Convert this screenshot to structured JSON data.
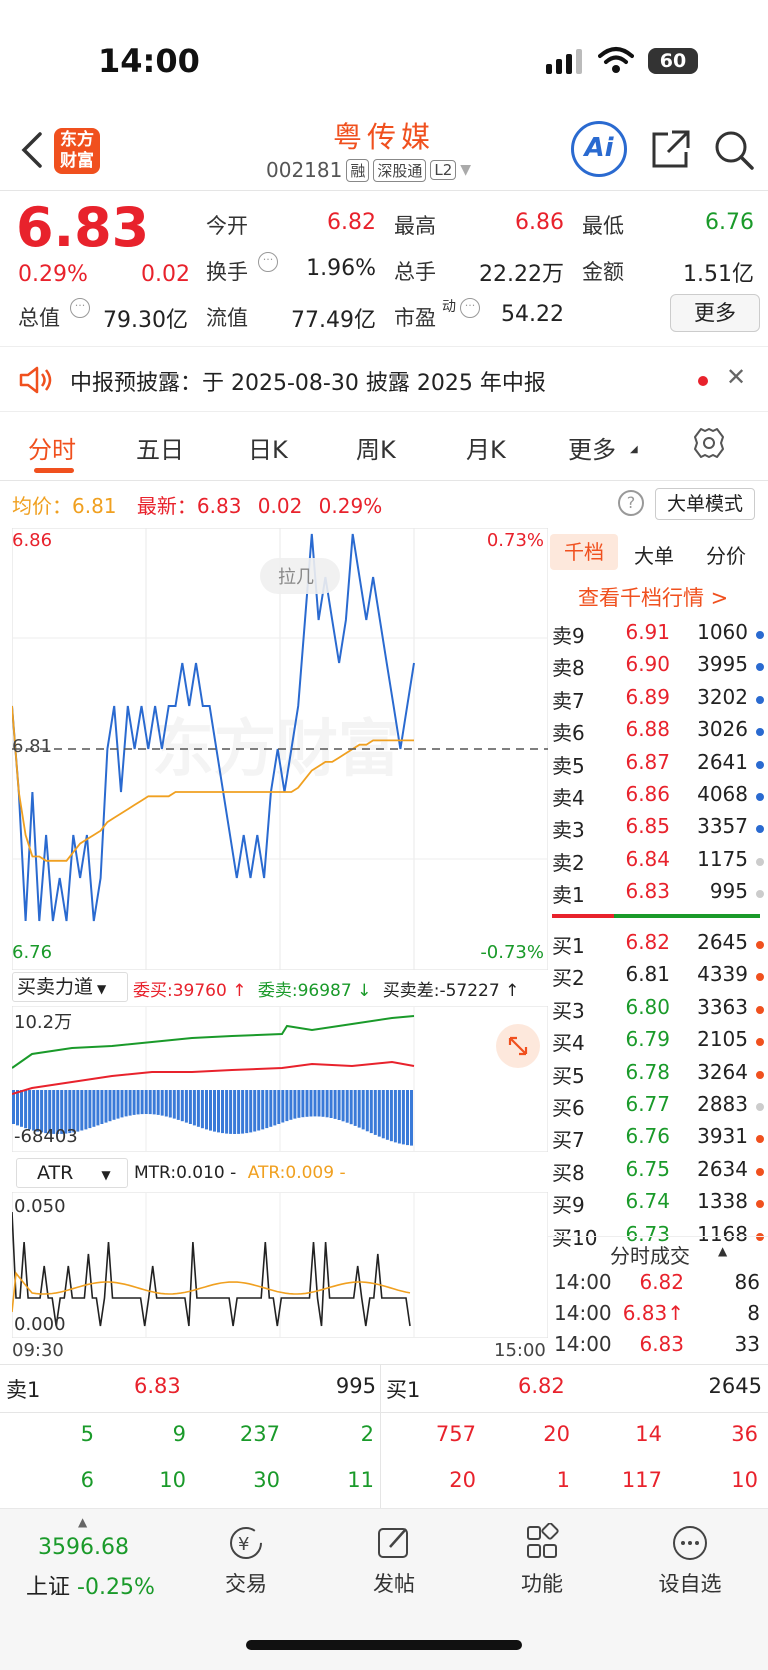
{
  "status_bar": {
    "time": "14:00",
    "battery": "60"
  },
  "header": {
    "logo": "东方财富",
    "name": "粤传媒",
    "code": "002181",
    "tags": [
      "融",
      "深股通",
      "L2"
    ],
    "ai_label": "Ai"
  },
  "quote": {
    "price": "6.83",
    "change_pct": "0.29%",
    "change": "0.02",
    "fields": {
      "open_label": "今开",
      "open": "6.82",
      "high_label": "最高",
      "high": "6.86",
      "low_label": "最低",
      "low": "6.76",
      "turnover_label": "换手",
      "turnover": "1.96%",
      "volume_label": "总手",
      "volume": "22.22万",
      "amount_label": "金额",
      "amount": "1.51亿",
      "mcap_label": "总值",
      "mcap": "79.30亿",
      "float_label": "流值",
      "float": "77.49亿",
      "pe_label": "市盈",
      "pe_sup": "动",
      "pe": "54.22"
    },
    "more": "更多"
  },
  "notice": {
    "text": "中报预披露：于 2025-08-30 披露 2025 年中报"
  },
  "tabs": [
    "分时",
    "五日",
    "日K",
    "周K",
    "月K",
    "更多"
  ],
  "chart_info": {
    "avg_label": "均价：",
    "avg": "6.81",
    "latest_label": "最新：",
    "latest": "6.83",
    "chg": "0.02",
    "chg_pct": "0.29%",
    "big_order_mode": "大单模式"
  },
  "chart_data": {
    "type": "line",
    "title": "",
    "y_top": "6.86",
    "y_bottom": "6.76",
    "y_mid": "6.81",
    "pct_top": "0.73%",
    "pct_bottom": "-0.73%",
    "x_start": "09:30",
    "x_end": "15:00",
    "ylim": [
      6.76,
      6.86
    ],
    "watermark": "东方财富",
    "series": [
      {
        "color": "#2a6ad0",
        "values": [
          6.82,
          6.8,
          6.77,
          6.8,
          6.77,
          6.79,
          6.77,
          6.78,
          6.77,
          6.79,
          6.78,
          6.79,
          6.77,
          6.78,
          6.81,
          6.82,
          6.8,
          6.82,
          6.81,
          6.82,
          6.81,
          6.82,
          6.81,
          6.82,
          6.82,
          6.83,
          6.82,
          6.83,
          6.82,
          6.82,
          6.81,
          6.8,
          6.79,
          6.78,
          6.79,
          6.78,
          6.79,
          6.78,
          6.8,
          6.81,
          6.8,
          6.81,
          6.82,
          6.84,
          6.86,
          6.84,
          6.85,
          6.84,
          6.83,
          6.84,
          6.86,
          6.85,
          6.84,
          6.85,
          6.84,
          6.83,
          6.82,
          6.81,
          6.82,
          6.83
        ]
      },
      {
        "color": "#f0a020",
        "values": [
          6.82,
          6.8,
          6.79,
          6.785,
          6.785,
          6.784,
          6.784,
          6.784,
          6.784,
          6.786,
          6.788,
          6.789,
          6.79,
          6.791,
          6.793,
          6.794,
          6.795,
          6.796,
          6.797,
          6.798,
          6.799,
          6.799,
          6.799,
          6.799,
          6.8,
          6.8,
          6.8,
          6.8,
          6.8,
          6.8,
          6.8,
          6.8,
          6.8,
          6.8,
          6.8,
          6.8,
          6.8,
          6.8,
          6.8,
          6.8,
          6.8,
          6.8,
          6.801,
          6.803,
          6.805,
          6.806,
          6.807,
          6.807,
          6.808,
          6.809,
          6.81,
          6.811,
          6.811,
          6.812,
          6.812,
          6.812,
          6.812,
          6.812,
          6.812,
          6.812
        ]
      }
    ]
  },
  "force": {
    "label": "买卖力道",
    "bid": "委买:39760 ↑",
    "ask": "委卖:96987 ↓",
    "diff": "买卖差:-57227 ↑",
    "top_val": "10.2万",
    "bottom_val": "-68403"
  },
  "atr": {
    "label": "ATR",
    "mtr": "MTR:0.010 -",
    "atr": "ATR:0.009 -",
    "top_val": "0.050",
    "bottom_val": "0.000"
  },
  "orderbook": {
    "tabs": [
      "千档",
      "大单",
      "分价"
    ],
    "link": "查看千档行情 >",
    "sells": [
      {
        "label": "卖9",
        "price": "6.91",
        "vol": "1060"
      },
      {
        "label": "卖8",
        "price": "6.90",
        "vol": "3995"
      },
      {
        "label": "卖7",
        "price": "6.89",
        "vol": "3202"
      },
      {
        "label": "卖6",
        "price": "6.88",
        "vol": "3026"
      },
      {
        "label": "卖5",
        "price": "6.87",
        "vol": "2641"
      },
      {
        "label": "卖4",
        "price": "6.86",
        "vol": "4068"
      },
      {
        "label": "卖3",
        "price": "6.85",
        "vol": "3357"
      },
      {
        "label": "卖2",
        "price": "6.84",
        "vol": "1175"
      },
      {
        "label": "卖1",
        "price": "6.83",
        "vol": "995"
      }
    ],
    "buys": [
      {
        "label": "买1",
        "price": "6.82",
        "vol": "2645"
      },
      {
        "label": "买2",
        "price": "6.81",
        "vol": "4339"
      },
      {
        "label": "买3",
        "price": "6.80",
        "vol": "3363"
      },
      {
        "label": "买4",
        "price": "6.79",
        "vol": "2105"
      },
      {
        "label": "买5",
        "price": "6.78",
        "vol": "3264"
      },
      {
        "label": "买6",
        "price": "6.77",
        "vol": "2883"
      },
      {
        "label": "买7",
        "price": "6.76",
        "vol": "3931"
      },
      {
        "label": "买8",
        "price": "6.75",
        "vol": "2634"
      },
      {
        "label": "买9",
        "price": "6.74",
        "vol": "1338"
      },
      {
        "label": "买10",
        "price": "6.73",
        "vol": "1168"
      }
    ],
    "trades_title": "分时成交",
    "trades": [
      {
        "time": "14:00",
        "price": "6.82",
        "vol": "86"
      },
      {
        "time": "14:00",
        "price": "6.83↑",
        "vol": "8"
      },
      {
        "time": "14:00",
        "price": "6.83",
        "vol": "33"
      }
    ]
  },
  "deal_summary": {
    "sell_label": "卖1",
    "sell_price": "6.83",
    "sell_vol": "995",
    "buy_label": "买1",
    "buy_price": "6.82",
    "buy_vol": "2645",
    "sell_rows": [
      [
        "5",
        "9",
        "237",
        "2"
      ],
      [
        "6",
        "10",
        "30",
        "11"
      ]
    ],
    "buy_rows": [
      [
        "757",
        "20",
        "14",
        "36"
      ],
      [
        "20",
        "1",
        "117",
        "10"
      ]
    ]
  },
  "bottom_nav": {
    "index_value": "3596.68",
    "index_name": "上证",
    "index_change": "-0.25%",
    "items": [
      "交易",
      "发帖",
      "功能",
      "设自选"
    ]
  }
}
